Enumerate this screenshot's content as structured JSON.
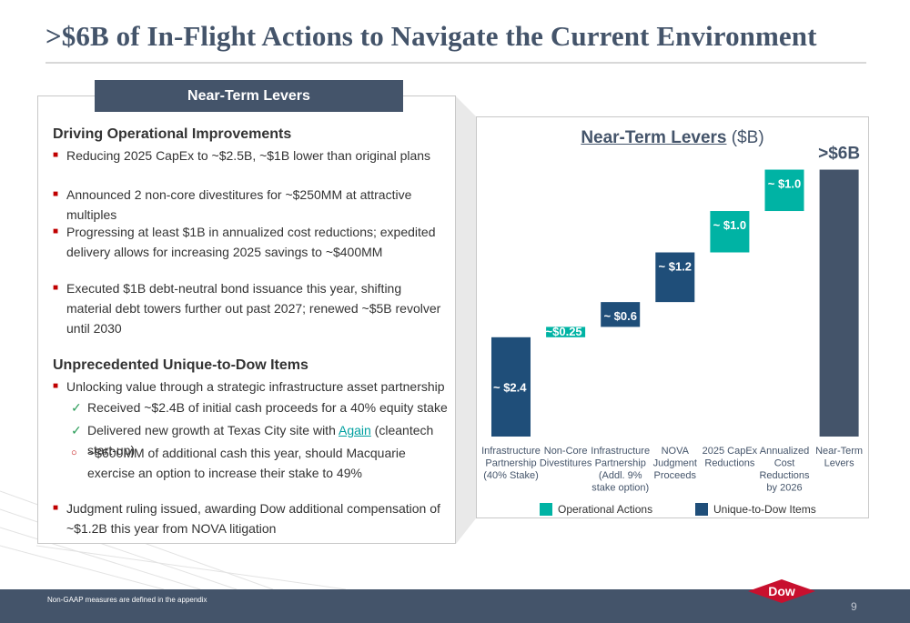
{
  "title": ">$6B of In-Flight Actions to Navigate the Current Environment",
  "left": {
    "tab": "Near-Term Levers",
    "section1": {
      "heading": "Driving Operational Improvements",
      "bullets": [
        "Reducing 2025 CapEx to ~$2.5B, ~$1B lower than original plans",
        "Announced 2 non-core divestitures for ~$250MM at attractive multiples",
        "Progressing at least $1B in annualized cost reductions; expedited delivery allows for increasing 2025 savings to ~$400MM",
        "Executed $1B debt-neutral bond issuance this year, shifting material debt towers further out past 2027; renewed ~$5B revolver until 2030"
      ]
    },
    "section2": {
      "heading": "Unprecedented Unique-to-Dow Items",
      "bullet1": "Unlocking value through a strategic infrastructure asset partnership",
      "sub1": "Received ~$2.4B of initial cash proceeds for a 40% equity stake",
      "sub2_pre": "Delivered new growth at Texas City site with ",
      "sub2_link": "Again",
      "sub2_post": " (cleantech start-up)",
      "sub3": "~$600MM of additional cash this year, should Macquarie exercise an option to increase their stake to 49%",
      "bullet2": "Judgment ruling issued, awarding Dow additional compensation of ~$1.2B this year from NOVA litigation"
    }
  },
  "chart": {
    "title_bold": "Near-Term Levers",
    "title_unit": " ($B)",
    "legend": {
      "operational": "Operational Actions",
      "unique": "Unique-to-Dow Items"
    }
  },
  "colors": {
    "navy": "#44546a",
    "unique": "#1f4e79",
    "operational": "#00b3a4",
    "accent": "#c00000"
  },
  "chart_data": {
    "type": "bar",
    "subtype": "waterfall",
    "categories": [
      [
        "Infrastructure",
        "Partnership",
        "(40% Stake)"
      ],
      [
        "Non-Core",
        "Divestitures"
      ],
      [
        "Infrastructure",
        "Partnership",
        "(Addl. 9%",
        "stake option)"
      ],
      [
        "NOVA",
        "Judgment",
        "Proceeds"
      ],
      [
        "2025 CapEx",
        "Reductions"
      ],
      [
        "Annualized",
        "Cost",
        "Reductions",
        "by 2026"
      ],
      [
        "Near-Term",
        "Levers"
      ]
    ],
    "values": [
      2.4,
      0.25,
      0.6,
      1.2,
      1.0,
      1.0,
      6.45
    ],
    "labels": [
      "~ $2.4",
      "~$0.25",
      "~ $0.6",
      "~ $1.2",
      "~ $1.0",
      "~ $1.0",
      ">$6B"
    ],
    "groups": [
      "unique",
      "operational",
      "unique",
      "unique",
      "operational",
      "operational",
      "total"
    ],
    "ylim": [
      0,
      6.6
    ]
  },
  "footer": {
    "footnote": "Non-GAAP measures are defined in the appendix",
    "page": "9",
    "logo_text": "Dow"
  }
}
